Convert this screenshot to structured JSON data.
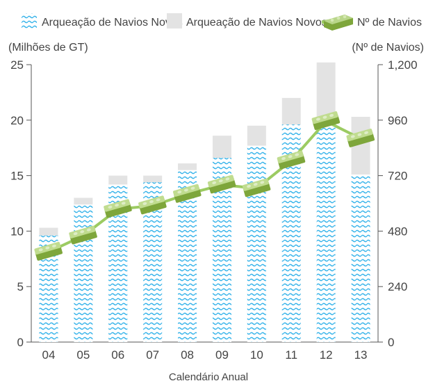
{
  "chart_data": {
    "type": "bar",
    "legend": {
      "placement": "top",
      "items": [
        {
          "label": "Arqueação de Navios Novos",
          "swatch": "wavy-blue"
        },
        {
          "label": "Arqueação de Navios Novos",
          "swatch": "gray"
        },
        {
          "label": "Nº de Navios",
          "swatch": "green-brick-line"
        }
      ]
    },
    "y_left_label": "(Milhões de GT)",
    "y_right_label": "(Nº de Navios)",
    "xlabel": "Calendário Anual",
    "categories": [
      "04",
      "05",
      "06",
      "07",
      "08",
      "09",
      "10",
      "11",
      "12",
      "13"
    ],
    "y_left": {
      "min": 0,
      "max": 25,
      "ticks": [
        "0",
        "5",
        "10",
        "15",
        "20",
        "25"
      ]
    },
    "y_right": {
      "min": 0,
      "max": 1200,
      "ticks": [
        "0",
        "240",
        "480",
        "720",
        "960",
        "1,200"
      ]
    },
    "series": [
      {
        "name": "Arqueação de Navios Novos",
        "type": "bar",
        "axis": "left",
        "values": [
          9.6,
          12.4,
          14.2,
          14.4,
          15.5,
          16.6,
          17.7,
          19.6,
          19.7,
          15.1
        ]
      },
      {
        "name": "Arqueação de Navios Novos",
        "type": "bar",
        "axis": "left",
        "values": [
          10.3,
          13.0,
          15.0,
          15.0,
          16.1,
          18.6,
          19.5,
          22.0,
          25.2,
          20.3
        ]
      },
      {
        "name": "Nº de Navios",
        "type": "line",
        "axis": "right",
        "values": [
          390,
          460,
          575,
          590,
          640,
          680,
          665,
          785,
          955,
          880
        ]
      }
    ],
    "colors": {
      "wave": "#38b4ea",
      "gray": "#e3e3e3",
      "brick": "#a7c96a",
      "brick_dark": "#7ea63b",
      "line": "#9ccb62",
      "axis": "#555555"
    }
  }
}
